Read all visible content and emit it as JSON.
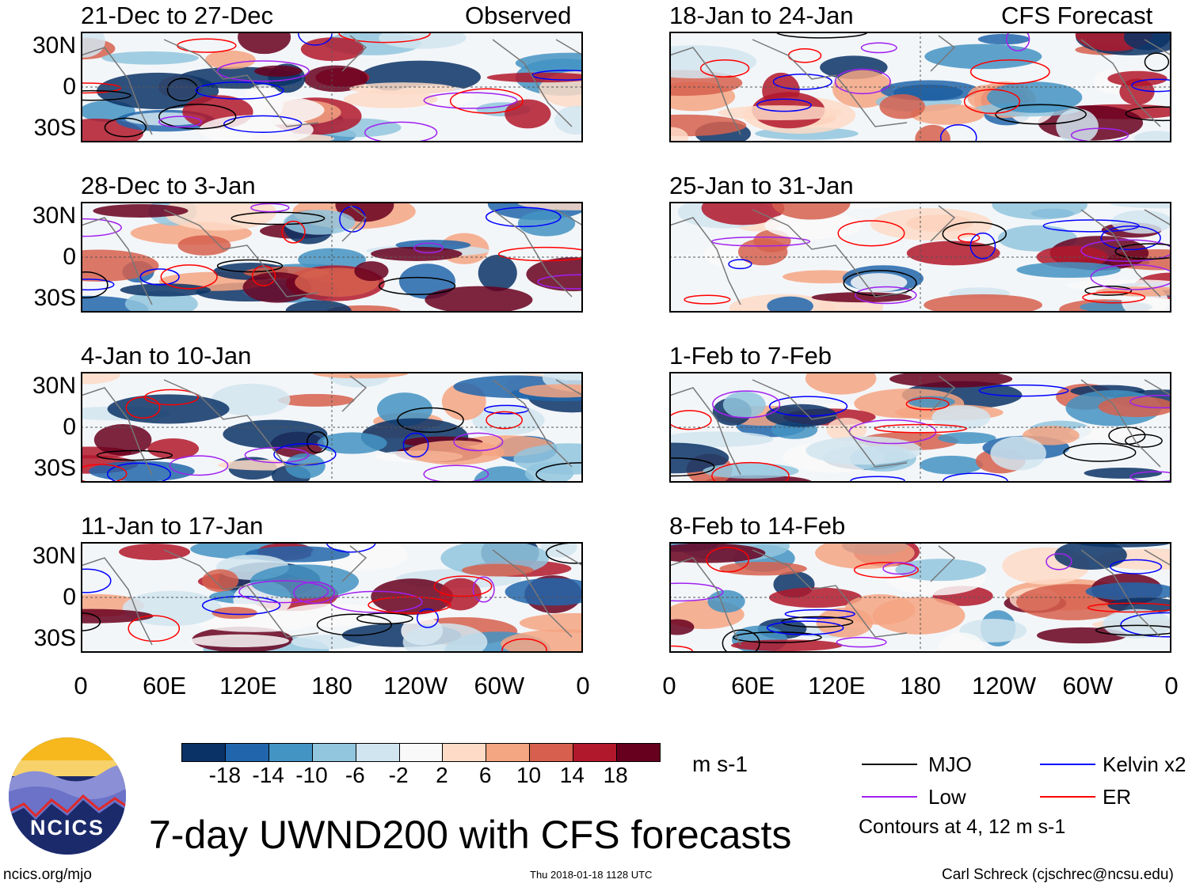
{
  "chart_data": {
    "type": "heatmap",
    "title": "7-day UWND200 with CFS forecasts",
    "units": "m s-1",
    "left_column_label": "Observed",
    "right_column_label": "CFS Forecast",
    "lat_ticks": [
      "30N",
      "0",
      "30S"
    ],
    "lon_ticks": [
      "0",
      "60E",
      "120E",
      "180",
      "120W",
      "60W",
      "0"
    ],
    "panels": [
      {
        "title": "21-Dec to 27-Dec",
        "kind": "observed"
      },
      {
        "title": "28-Dec to 3-Jan",
        "kind": "observed"
      },
      {
        "title": "4-Jan to 10-Jan",
        "kind": "observed"
      },
      {
        "title": "11-Jan to 17-Jan",
        "kind": "observed"
      },
      {
        "title": "18-Jan to 24-Jan",
        "kind": "forecast"
      },
      {
        "title": "25-Jan to 31-Jan",
        "kind": "forecast"
      },
      {
        "title": "1-Feb to 7-Feb",
        "kind": "forecast"
      },
      {
        "title": "8-Feb to 14-Feb",
        "kind": "forecast"
      }
    ],
    "colorbar": {
      "labels": [
        "-18",
        "-14",
        "-10",
        "-6",
        "-2",
        "2",
        "6",
        "10",
        "14",
        "18"
      ],
      "colors": [
        "#0a3266",
        "#2166ac",
        "#4393c3",
        "#92c5de",
        "#d1e5f0",
        "#f9f9f9",
        "#fddbc7",
        "#f4a582",
        "#d6604d",
        "#b2182b",
        "#67001f"
      ]
    },
    "legend": [
      {
        "label": "MJO",
        "color": "#000000"
      },
      {
        "label": "Kelvin x2",
        "color": "#0000ff"
      },
      {
        "label": "Low",
        "color": "#a020f0"
      },
      {
        "label": "ER",
        "color": "#ff0000"
      }
    ],
    "contour_note": "Contours at 4, 12 m s-1"
  },
  "footer": {
    "logo_text": "NCICS",
    "site": "ncics.org/mjo",
    "timestamp": "Thu 2018-01-18 1128 UTC",
    "author": "Carl Schreck (cjschrec@ncsu.edu)"
  }
}
